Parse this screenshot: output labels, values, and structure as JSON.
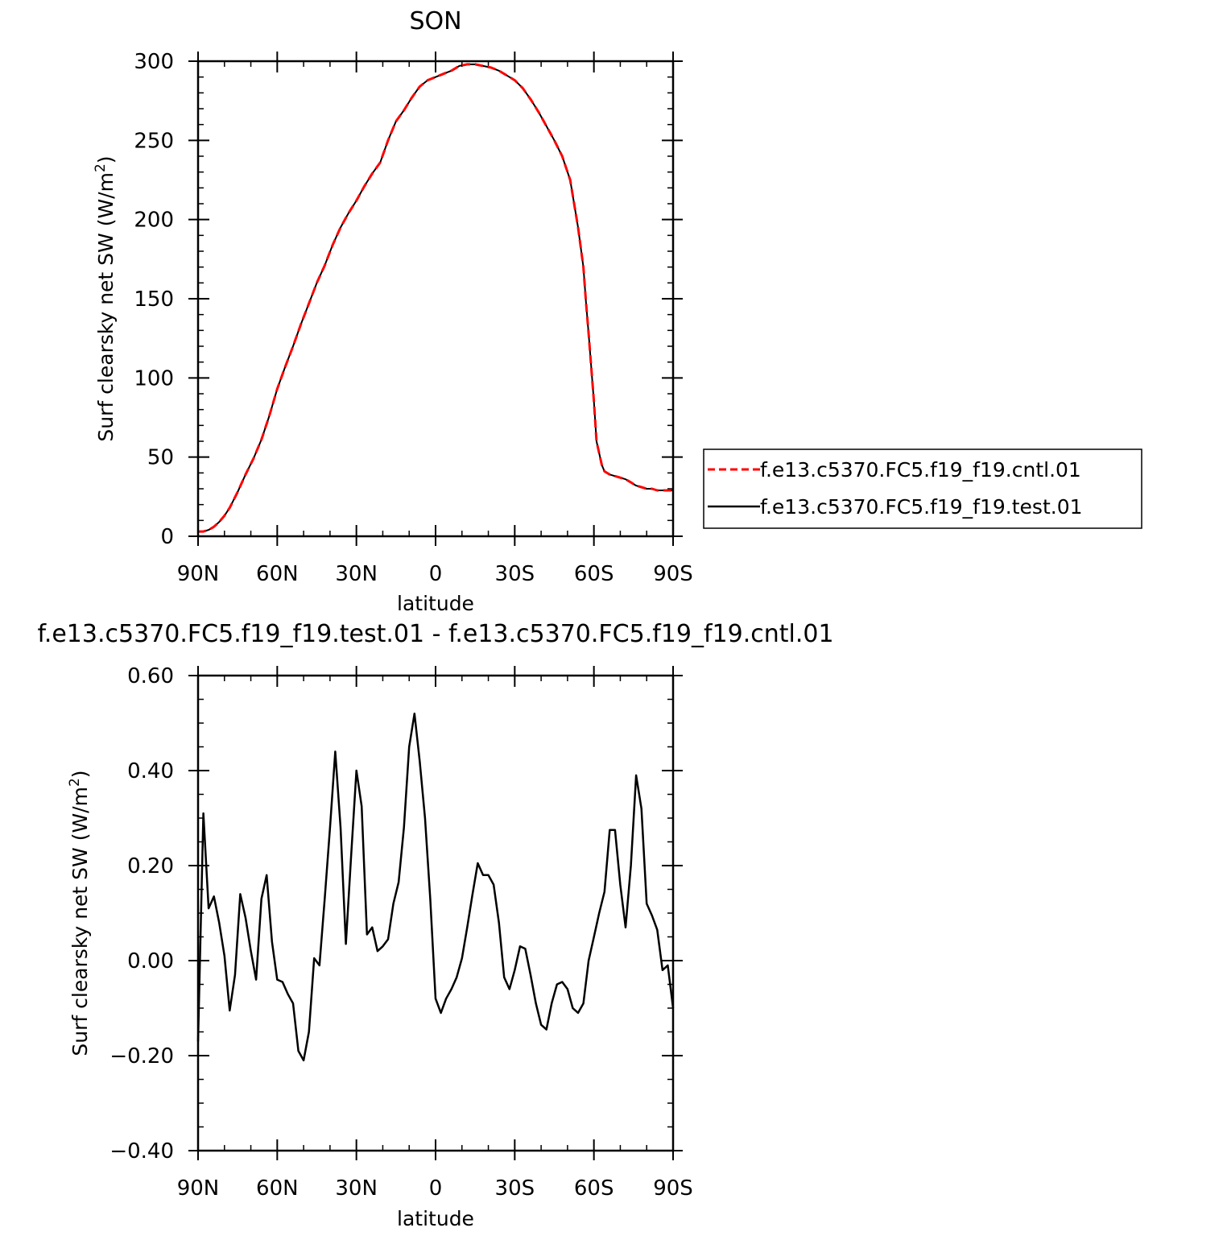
{
  "chart_data": [
    {
      "type": "line",
      "title": "SON",
      "xlabel": "latitude",
      "ylabel": "Surf clearsky net SW (W/m",
      "ylabel_sup": "2",
      "ylabel_close": ")",
      "xlim": [
        -90,
        90
      ],
      "ylim": [
        0,
        300
      ],
      "xticks": [
        -90,
        -60,
        -30,
        0,
        30,
        60,
        90
      ],
      "xticklabels": [
        "90N",
        "60N",
        "30N",
        "0",
        "30S",
        "60S",
        "90S"
      ],
      "yticks": [
        0,
        50,
        100,
        150,
        200,
        250,
        300
      ],
      "yticklabels": [
        "0",
        "50",
        "100",
        "150",
        "200",
        "250",
        "300"
      ],
      "legend_position": "right",
      "legend": [
        "f.e13.c5370.FC5.f19_f19.cntl.01",
        "f.e13.c5370.FC5.f19_f19.test.01"
      ],
      "colors": {
        "cntl": "#ff0000",
        "test": "#000000"
      },
      "x": [
        -90,
        -88,
        -86,
        -84,
        -82,
        -80,
        -78,
        -75,
        -72,
        -69,
        -66,
        -63,
        -60,
        -57,
        -54,
        -51,
        -48,
        -45,
        -42,
        -39,
        -36,
        -33,
        -30,
        -27,
        -24,
        -21,
        -18,
        -15,
        -12,
        -9,
        -6,
        -3,
        0,
        3,
        6,
        9,
        12,
        15,
        18,
        21,
        24,
        27,
        30,
        33,
        36,
        39,
        42,
        45,
        48,
        51,
        54,
        56,
        57,
        58,
        60,
        61,
        63,
        64,
        66,
        68,
        70,
        72,
        74,
        76,
        78,
        80,
        82,
        84,
        86,
        88,
        90
      ],
      "series": [
        {
          "name": "f.e13.c5370.FC5.f19_f19.cntl.01",
          "style": "dashed",
          "values": [
            3,
            3,
            4,
            6,
            9,
            13,
            18,
            28,
            39,
            49,
            61,
            76,
            93,
            107,
            120,
            134,
            147,
            160,
            171,
            184,
            195,
            204,
            212,
            221,
            229,
            236,
            250,
            262,
            269,
            277,
            284,
            288,
            290,
            292,
            294,
            297,
            298,
            298,
            297,
            296,
            294,
            291,
            288,
            283,
            276,
            268,
            259,
            250,
            240,
            225,
            195,
            170,
            148,
            128,
            85,
            60,
            45,
            41,
            39,
            38,
            37,
            36,
            34,
            32,
            31,
            30,
            30,
            29,
            29,
            29,
            29
          ]
        },
        {
          "name": "f.e13.c5370.FC5.f19_f19.test.01",
          "style": "solid",
          "values": [
            3,
            3,
            4,
            6,
            9,
            13,
            18,
            28,
            39,
            49,
            61,
            76,
            93,
            107,
            120,
            134,
            147,
            160,
            171,
            184,
            195,
            204,
            212,
            221,
            229,
            236,
            250,
            262,
            269,
            277,
            284,
            288,
            290,
            292,
            294,
            297,
            298,
            298,
            297,
            296,
            294,
            291,
            288,
            283,
            276,
            268,
            259,
            250,
            240,
            225,
            195,
            170,
            148,
            128,
            85,
            60,
            45,
            41,
            39,
            38,
            37,
            36,
            34,
            32,
            31,
            30,
            30,
            29,
            29,
            29,
            29
          ]
        }
      ]
    },
    {
      "type": "line",
      "title": "f.e13.c5370.FC5.f19_f19.test.01 - f.e13.c5370.FC5.f19_f19.cntl.01",
      "xlabel": "latitude",
      "ylabel": "Surf clearsky net SW (W/m",
      "ylabel_sup": "2",
      "ylabel_close": ")",
      "xlim": [
        -90,
        90
      ],
      "ylim": [
        -0.4,
        0.6
      ],
      "xticks": [
        -90,
        -60,
        -30,
        0,
        30,
        60,
        90
      ],
      "xticklabels": [
        "90N",
        "60N",
        "30N",
        "0",
        "30S",
        "60S",
        "90S"
      ],
      "yticks": [
        -0.4,
        -0.2,
        0,
        0.2,
        0.4,
        0.6
      ],
      "yticklabels": [
        "−0.40",
        "−0.20",
        "0.00",
        "0.20",
        "0.40",
        "0.60"
      ],
      "colors": {
        "line": "#000000"
      },
      "x": [
        -90,
        -88,
        -86,
        -84,
        -82,
        -80,
        -78,
        -76,
        -74,
        -72,
        -70,
        -68,
        -66,
        -64,
        -62,
        -60,
        -58,
        -56,
        -54,
        -52,
        -50,
        -48,
        -46,
        -44,
        -42,
        -40,
        -38,
        -36,
        -34,
        -32,
        -30,
        -28,
        -26,
        -24,
        -22,
        -20,
        -18,
        -16,
        -14,
        -12,
        -10,
        -8,
        -6,
        -4,
        -2,
        0,
        2,
        4,
        6,
        8,
        10,
        12,
        14,
        16,
        18,
        20,
        22,
        24,
        26,
        28,
        30,
        32,
        34,
        36,
        38,
        40,
        42,
        44,
        46,
        48,
        50,
        52,
        54,
        56,
        58,
        60,
        62,
        64,
        66,
        68,
        70,
        72,
        74,
        76,
        78,
        80,
        82,
        84,
        86,
        88,
        90
      ],
      "series": [
        {
          "name": "",
          "values": [
            -0.17,
            0.31,
            0.11,
            0.135,
            0.08,
            0.01,
            -0.105,
            -0.03,
            0.14,
            0.09,
            0.02,
            -0.04,
            0.13,
            0.18,
            0.04,
            -0.04,
            -0.045,
            -0.07,
            -0.09,
            -0.19,
            -0.21,
            -0.15,
            0.005,
            -0.01,
            0.13,
            0.28,
            0.44,
            0.28,
            0.035,
            0.22,
            0.4,
            0.325,
            0.055,
            0.07,
            0.02,
            0.03,
            0.045,
            0.12,
            0.165,
            0.28,
            0.45,
            0.52,
            0.42,
            0.3,
            0.13,
            -0.08,
            -0.11,
            -0.08,
            -0.06,
            -0.035,
            0.005,
            0.07,
            0.14,
            0.205,
            0.18,
            0.18,
            0.16,
            0.08,
            -0.035,
            -0.06,
            -0.02,
            0.03,
            0.025,
            -0.03,
            -0.09,
            -0.135,
            -0.145,
            -0.09,
            -0.05,
            -0.045,
            -0.06,
            -0.1,
            -0.11,
            -0.09,
            0.0,
            0.05,
            0.1,
            0.145,
            0.275,
            0.275,
            0.16,
            0.07,
            0.2,
            0.39,
            0.32,
            0.12,
            0.095,
            0.065,
            -0.02,
            -0.01,
            -0.1
          ]
        }
      ]
    }
  ]
}
